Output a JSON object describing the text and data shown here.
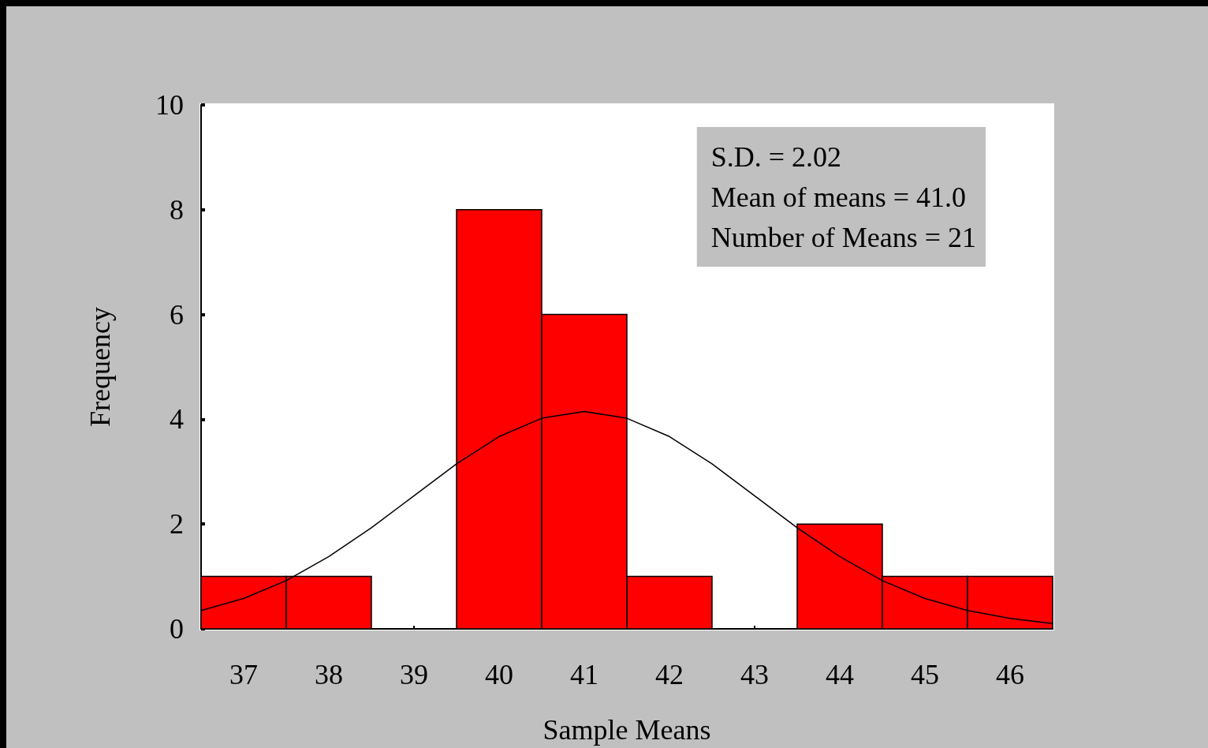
{
  "chart_data": {
    "type": "histogram",
    "xlabel": "Sample Means",
    "ylabel": "Frequency",
    "bins": [
      36.5,
      37.5,
      38.5,
      39.5,
      40.5,
      41.5,
      42.5,
      43.5,
      44.5,
      45.5,
      46.5
    ],
    "values": [
      1,
      1,
      0,
      8,
      6,
      1,
      0,
      2,
      1,
      1
    ],
    "color": "#ff0000",
    "series": [
      {
        "type": "line",
        "color": "#000000",
        "x": [
          36.5,
          37,
          37.5,
          38,
          38.5,
          39,
          39.5,
          40,
          40.5,
          41,
          41.5,
          42,
          42.5,
          43,
          43.5,
          44,
          44.5,
          45,
          45.5,
          46,
          46.5
        ],
        "values": [
          0.35,
          0.58,
          0.92,
          1.38,
          1.93,
          2.54,
          3.15,
          3.67,
          4.02,
          4.15,
          4.02,
          3.67,
          3.15,
          2.54,
          1.93,
          1.38,
          0.92,
          0.58,
          0.35,
          0.2,
          0.1
        ]
      }
    ],
    "xlim": [
      36.5,
      46.5
    ],
    "xticks": [
      37,
      38,
      39,
      40,
      41,
      42,
      43,
      44,
      45,
      46
    ],
    "ylim": [
      0,
      10
    ],
    "yticks": [
      0,
      2,
      4,
      6,
      8,
      10
    ],
    "annotations": [
      "S.D. = 2.02",
      "Mean of means = 41.0",
      "Number of Means = 21"
    ],
    "grid": false,
    "marker": "none"
  }
}
